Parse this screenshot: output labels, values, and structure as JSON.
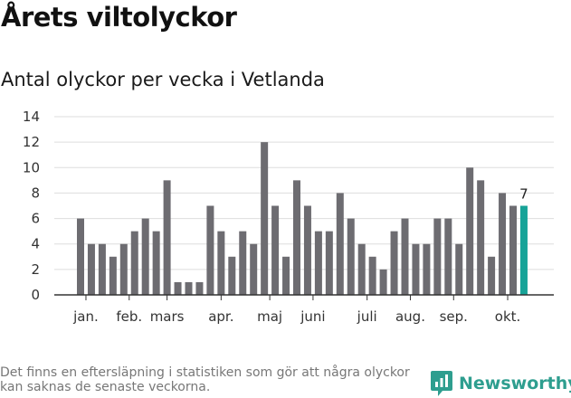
{
  "title": "Årets viltolyckor",
  "subtitle": "Antal olyckor per vecka i Vetlanda",
  "footnote": "Det finns en eftersläpning i statistiken som gör att några olyckor kan saknas de senaste veckorna.",
  "brand": {
    "name": "Newsworthy",
    "color": "#2e9e8f",
    "icon": "newsworthy-logo-icon"
  },
  "colors": {
    "bar": "#6d6c71",
    "highlight": "#17a398",
    "grid": "#dddddd",
    "axis": "#333333"
  },
  "chart_data": {
    "type": "bar",
    "title": "",
    "xlabel": "",
    "ylabel": "",
    "ylim": [
      0,
      14
    ],
    "yticks": [
      0,
      2,
      4,
      6,
      8,
      10,
      12,
      14
    ],
    "grid": true,
    "values": [
      6,
      4,
      4,
      3,
      4,
      5,
      6,
      5,
      9,
      1,
      1,
      1,
      7,
      5,
      3,
      5,
      4,
      12,
      7,
      3,
      9,
      7,
      5,
      5,
      8,
      6,
      4,
      3,
      2,
      5,
      6,
      4,
      4,
      6,
      6,
      4,
      10,
      9,
      3,
      8,
      7,
      7
    ],
    "highlight_index": 41,
    "highlight_label": "7",
    "month_labels": [
      {
        "label": "jan.",
        "at": 0.5
      },
      {
        "label": "feb.",
        "at": 4.5
      },
      {
        "label": "mars",
        "at": 8
      },
      {
        "label": "apr.",
        "at": 13
      },
      {
        "label": "maj",
        "at": 17.5
      },
      {
        "label": "juni",
        "at": 21.5
      },
      {
        "label": "juli",
        "at": 26.5
      },
      {
        "label": "aug.",
        "at": 30.5
      },
      {
        "label": "sep.",
        "at": 34.5
      },
      {
        "label": "okt.",
        "at": 39.5
      }
    ]
  }
}
